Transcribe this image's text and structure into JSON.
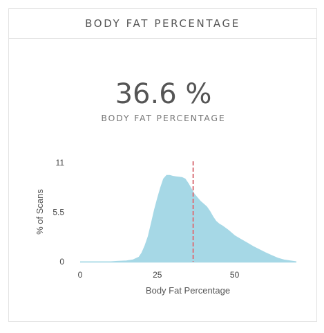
{
  "card": {
    "title": "BODY FAT PERCENTAGE"
  },
  "metric": {
    "value": "36.6 %",
    "label": "BODY FAT PERCENTAGE"
  },
  "chart_data": {
    "type": "area",
    "xlabel": "Body Fat Percentage",
    "ylabel": "% of Scans",
    "xlim": [
      0,
      70
    ],
    "ylim": [
      0,
      11
    ],
    "x_ticks": [
      {
        "value": 0,
        "label": "0"
      },
      {
        "value": 25,
        "label": "25"
      },
      {
        "value": 50,
        "label": "50"
      }
    ],
    "y_ticks": [
      {
        "value": 0,
        "label": "0"
      },
      {
        "value": 5.5,
        "label": "5.5"
      },
      {
        "value": 11,
        "label": "11"
      }
    ],
    "grid": false,
    "fill_color": "#a6d8e6",
    "marker": {
      "value": 36.6,
      "color": "#d9737b",
      "style": "dashed"
    },
    "series": [
      {
        "x": [
          0,
          5,
          10,
          12,
          15,
          17,
          19,
          20,
          21,
          22,
          23,
          24,
          25,
          26,
          27,
          28,
          29,
          30,
          31,
          32,
          33,
          34,
          35,
          36,
          37,
          38,
          39,
          40,
          41,
          42,
          43,
          44,
          45,
          46,
          47,
          48,
          49,
          50,
          52,
          54,
          56,
          58,
          60,
          62,
          64,
          66,
          68,
          70
        ],
        "y": [
          0,
          0,
          0,
          0.05,
          0.1,
          0.2,
          0.5,
          1.0,
          1.8,
          2.8,
          4.2,
          5.7,
          7.0,
          8.2,
          9.2,
          9.6,
          9.6,
          9.5,
          9.45,
          9.4,
          9.35,
          9.2,
          8.7,
          8.1,
          7.5,
          7.1,
          6.7,
          6.4,
          6.1,
          5.6,
          5.0,
          4.5,
          4.2,
          4.0,
          3.75,
          3.5,
          3.2,
          2.9,
          2.5,
          2.1,
          1.7,
          1.35,
          1.0,
          0.7,
          0.4,
          0.2,
          0.1,
          0
        ]
      }
    ]
  }
}
